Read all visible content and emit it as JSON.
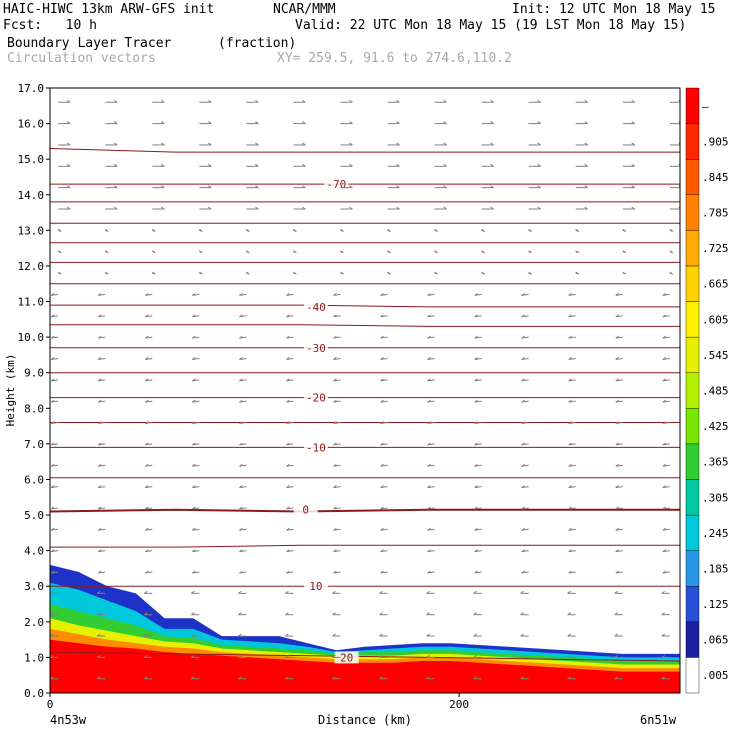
{
  "header": {
    "title_left": "HAIC-HIWC 13km ARW-GFS init",
    "org": "NCAR/MMM",
    "init": "Init: 12 UTC Mon 18 May 15",
    "fcst": "Fcst:   10 h",
    "valid": "Valid: 22 UTC Mon 18 May 15 (19 LST Mon 18 May 15)",
    "field_name": "Boundary Layer Tracer",
    "field_units": "(fraction)",
    "overlay_name": "Circulation vectors",
    "xy_text": "XY= 259.5, 91.6 to 274.6,110.2"
  },
  "colors": {
    "contour": "#8b1a1a",
    "vector": "#808080",
    "colorbar": [
      "#ffffff",
      "#1e1ea0",
      "#2850d8",
      "#2896e6",
      "#00c8dc",
      "#00c8a0",
      "#32cd32",
      "#78e600",
      "#b4f000",
      "#e6f000",
      "#fff000",
      "#ffd200",
      "#ffaa00",
      "#ff8200",
      "#ff5a00",
      "#ff2800",
      "#ff0000"
    ]
  },
  "chart_data": {
    "type": "heatmap",
    "xlabel": "Distance (km)",
    "ylabel": "Height (km)",
    "xlim": [
      0,
      308
    ],
    "ylim": [
      0.0,
      17.0
    ],
    "yticks": [
      "0.0",
      "1.0",
      "2.0",
      "3.0",
      "4.0",
      "5.0",
      "6.0",
      "7.0",
      "8.0",
      "9.0",
      "10.0",
      "11.0",
      "12.0",
      "13.0",
      "14.0",
      "15.0",
      "16.0",
      "17.0"
    ],
    "xticks": [
      {
        "value": 0,
        "label": "0"
      },
      {
        "value": 200,
        "label": "200"
      }
    ],
    "x_endpoints": {
      "left": "4n53w",
      "right": "6n51w"
    },
    "colorbar_labels": [
      ".005",
      ".065",
      ".125",
      ".185",
      ".245",
      ".305",
      ".365",
      ".425",
      ".485",
      ".545",
      ".605",
      ".665",
      ".725",
      ".785",
      ".845",
      ".905",
      "–"
    ],
    "temperature_contours": [
      {
        "label": "20",
        "label_x": 145,
        "height_km": [
          1.15,
          1.1,
          1.05,
          1.0,
          0.95,
          0.9
        ]
      },
      {
        "label": "10",
        "label_x": 130,
        "height_km": [
          3.0,
          3.0,
          3.0,
          3.0,
          3.0,
          3.0
        ]
      },
      {
        "label": "",
        "label_x": null,
        "height_km": [
          4.1,
          4.1,
          4.15,
          4.15,
          4.15,
          4.15
        ]
      },
      {
        "label": "0",
        "label_x": 125,
        "height_km": [
          5.1,
          5.15,
          5.1,
          5.15,
          5.15,
          5.15
        ]
      },
      {
        "label": "",
        "label_x": null,
        "height_km": [
          6.05,
          6.05,
          6.05,
          6.05,
          6.05,
          6.05
        ]
      },
      {
        "label": "-10",
        "label_x": 130,
        "height_km": [
          6.9,
          6.9,
          6.9,
          6.9,
          6.9,
          6.9
        ]
      },
      {
        "label": "",
        "label_x": null,
        "height_km": [
          7.6,
          7.6,
          7.6,
          7.6,
          7.6,
          7.6
        ]
      },
      {
        "label": "-20",
        "label_x": 130,
        "height_km": [
          8.3,
          8.3,
          8.3,
          8.3,
          8.3,
          8.3
        ]
      },
      {
        "label": "",
        "label_x": null,
        "height_km": [
          9.0,
          9.0,
          9.0,
          9.0,
          9.0,
          9.0
        ]
      },
      {
        "label": "-30",
        "label_x": 130,
        "height_km": [
          9.7,
          9.7,
          9.7,
          9.7,
          9.7,
          9.7
        ]
      },
      {
        "label": "",
        "label_x": null,
        "height_km": [
          10.35,
          10.35,
          10.35,
          10.3,
          10.3,
          10.3
        ]
      },
      {
        "label": "-40",
        "label_x": 130,
        "height_km": [
          10.9,
          10.9,
          10.9,
          10.85,
          10.85,
          10.85
        ]
      },
      {
        "label": "",
        "label_x": null,
        "height_km": [
          11.5,
          11.5,
          11.5,
          11.5,
          11.5,
          11.5
        ]
      },
      {
        "label": "",
        "label_x": null,
        "height_km": [
          12.1,
          12.1,
          12.1,
          12.1,
          12.1,
          12.1
        ]
      },
      {
        "label": "",
        "label_x": null,
        "height_km": [
          12.65,
          12.65,
          12.65,
          12.65,
          12.65,
          12.65
        ]
      },
      {
        "label": "",
        "label_x": null,
        "height_km": [
          13.2,
          13.2,
          13.2,
          13.2,
          13.2,
          13.2
        ]
      },
      {
        "label": "",
        "label_x": null,
        "height_km": [
          13.8,
          13.8,
          13.8,
          13.8,
          13.8,
          13.8
        ]
      },
      {
        "label": "-70",
        "label_x": 140,
        "height_km": [
          14.3,
          14.3,
          14.3,
          14.3,
          14.3,
          14.3
        ]
      },
      {
        "label": "",
        "label_x": null,
        "height_km": [
          15.3,
          15.2,
          15.2,
          15.2,
          15.2,
          15.2
        ]
      }
    ],
    "tracer_bands": [
      {
        "value": 0.005,
        "top_km": [
          3.6,
          3.4,
          3.0,
          2.8,
          2.1,
          2.1,
          1.6,
          1.6,
          1.6,
          1.4,
          1.2,
          1.3,
          1.35,
          1.4,
          1.4,
          1.35,
          1.3,
          1.25,
          1.2,
          1.15,
          1.1,
          1.1,
          1.1
        ]
      },
      {
        "value": 0.125,
        "top_km": [
          3.1,
          2.9,
          2.6,
          2.3,
          1.8,
          1.8,
          1.5,
          1.45,
          1.4,
          1.3,
          1.15,
          1.2,
          1.25,
          1.3,
          1.3,
          1.25,
          1.2,
          1.15,
          1.1,
          1.05,
          1.0,
          1.0,
          1.0
        ]
      },
      {
        "value": 0.305,
        "top_km": [
          2.5,
          2.3,
          2.1,
          1.9,
          1.6,
          1.55,
          1.35,
          1.3,
          1.25,
          1.2,
          1.1,
          1.15,
          1.15,
          1.2,
          1.2,
          1.15,
          1.1,
          1.05,
          1.0,
          0.95,
          0.9,
          0.9,
          0.9
        ]
      },
      {
        "value": 0.545,
        "top_km": [
          2.1,
          1.9,
          1.75,
          1.6,
          1.45,
          1.4,
          1.25,
          1.2,
          1.15,
          1.1,
          1.05,
          1.05,
          1.05,
          1.1,
          1.1,
          1.05,
          1.0,
          0.95,
          0.9,
          0.85,
          0.8,
          0.8,
          0.8
        ]
      },
      {
        "value": 0.725,
        "top_km": [
          1.8,
          1.65,
          1.5,
          1.4,
          1.3,
          1.25,
          1.15,
          1.1,
          1.05,
          1.0,
          0.95,
          0.95,
          0.95,
          1.0,
          1.0,
          0.95,
          0.9,
          0.85,
          0.8,
          0.75,
          0.7,
          0.7,
          0.7
        ]
      },
      {
        "value": 0.905,
        "top_km": [
          1.5,
          1.4,
          1.3,
          1.25,
          1.15,
          1.1,
          1.05,
          1.0,
          0.95,
          0.9,
          0.85,
          0.85,
          0.85,
          0.9,
          0.9,
          0.85,
          0.8,
          0.75,
          0.7,
          0.65,
          0.6,
          0.6,
          0.6
        ]
      }
    ],
    "wind_vectors": "circulation vectors shown as arrows on a regular grid; mostly westward near surface/mid-levels and eastward aloft"
  }
}
